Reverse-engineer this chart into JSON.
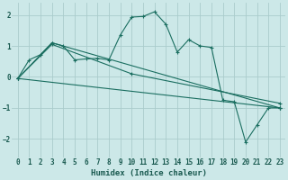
{
  "xlabel": "Humidex (Indice chaleur)",
  "ylabel": "",
  "bg_color": "#cce8e8",
  "grid_color": "#aacccc",
  "line_color": "#1a6e60",
  "xlim": [
    -0.5,
    23.5
  ],
  "ylim": [
    -2.6,
    2.4
  ],
  "yticks": [
    -2,
    -1,
    0,
    1,
    2
  ],
  "xticks": [
    0,
    1,
    2,
    3,
    4,
    5,
    6,
    7,
    8,
    9,
    10,
    11,
    12,
    13,
    14,
    15,
    16,
    17,
    18,
    19,
    20,
    21,
    22,
    23
  ],
  "line1_x": [
    0,
    1,
    2,
    3,
    4,
    5,
    6,
    7,
    8,
    9,
    10,
    11,
    12,
    13,
    14,
    15,
    16,
    17,
    18,
    19,
    20,
    21,
    22,
    23
  ],
  "line1_y": [
    -0.05,
    0.55,
    0.72,
    1.1,
    1.0,
    0.55,
    0.58,
    0.6,
    0.55,
    1.35,
    1.93,
    1.95,
    2.1,
    1.7,
    0.8,
    1.2,
    1.0,
    0.95,
    -0.75,
    -0.8,
    -2.1,
    -1.55,
    -1.0,
    -1.0
  ],
  "line2_x": [
    0,
    3,
    23
  ],
  "line2_y": [
    -0.05,
    1.1,
    -1.0
  ],
  "line3_x": [
    0,
    23
  ],
  "line3_y": [
    -0.05,
    -1.0
  ],
  "line4_x": [
    0,
    3,
    10,
    23
  ],
  "line4_y": [
    -0.05,
    1.05,
    0.1,
    -0.85
  ]
}
